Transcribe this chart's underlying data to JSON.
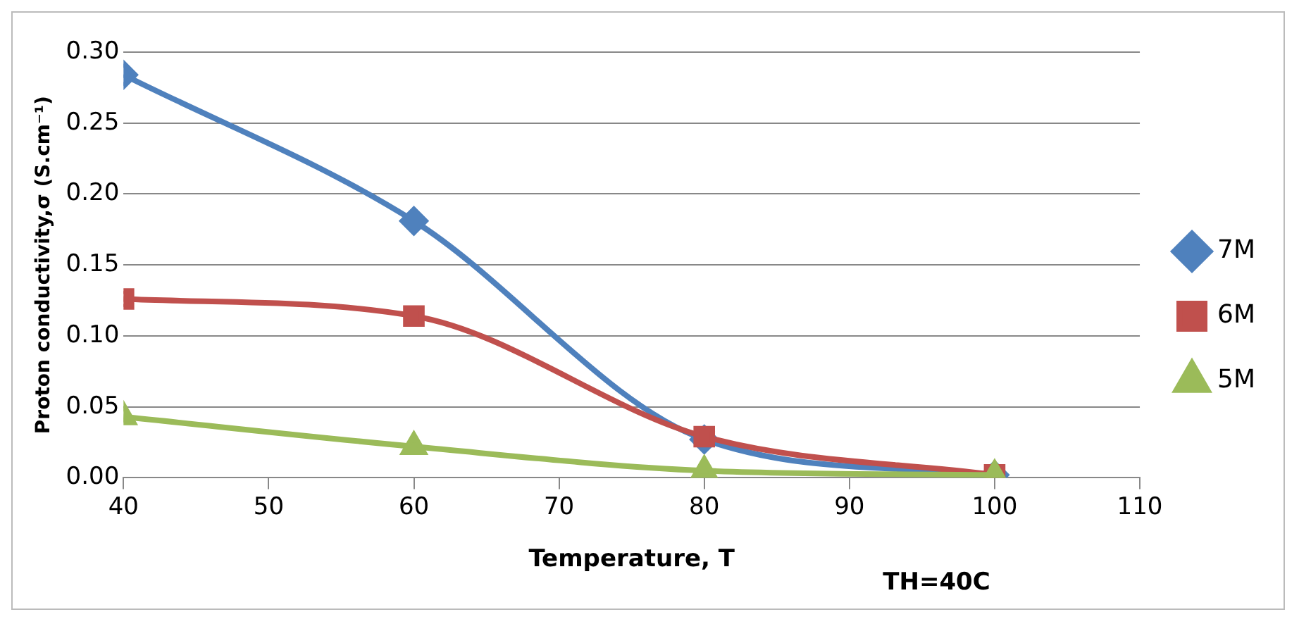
{
  "chart_data": {
    "type": "line",
    "xlabel": "Temperature, T",
    "ylabel": "Proton conductivity,σ (S.cm⁻¹)",
    "annotations": [
      "TH=40C"
    ],
    "x": [
      40,
      60,
      80,
      100
    ],
    "series": [
      {
        "name": "7M",
        "color": "#4f81bd",
        "marker": "diamond",
        "values": [
          0.284,
          0.181,
          0.027,
          0.002
        ]
      },
      {
        "name": "6M",
        "color": "#c0504d",
        "marker": "square",
        "values": [
          0.126,
          0.114,
          0.029,
          0.002
        ]
      },
      {
        "name": "5M",
        "color": "#9bbb59",
        "marker": "triangle",
        "values": [
          0.043,
          0.022,
          0.005,
          0.002
        ]
      }
    ],
    "xlim": [
      40,
      110
    ],
    "xticks": [
      40,
      50,
      60,
      70,
      80,
      90,
      100,
      110
    ],
    "ylim": [
      0,
      0.3
    ],
    "yticks": [
      {
        "value": 0,
        "label": "0.00"
      },
      {
        "value": 0.05,
        "label": "0.05"
      },
      {
        "value": 0.1,
        "label": "0.10"
      },
      {
        "value": 0.15,
        "label": "0.15"
      },
      {
        "value": 0.2,
        "label": "0.20"
      },
      {
        "value": 0.25,
        "label": "0.25"
      },
      {
        "value": 0.3,
        "label": "0.30"
      }
    ],
    "grid": "y",
    "legend": "right",
    "line_style": "solid"
  }
}
